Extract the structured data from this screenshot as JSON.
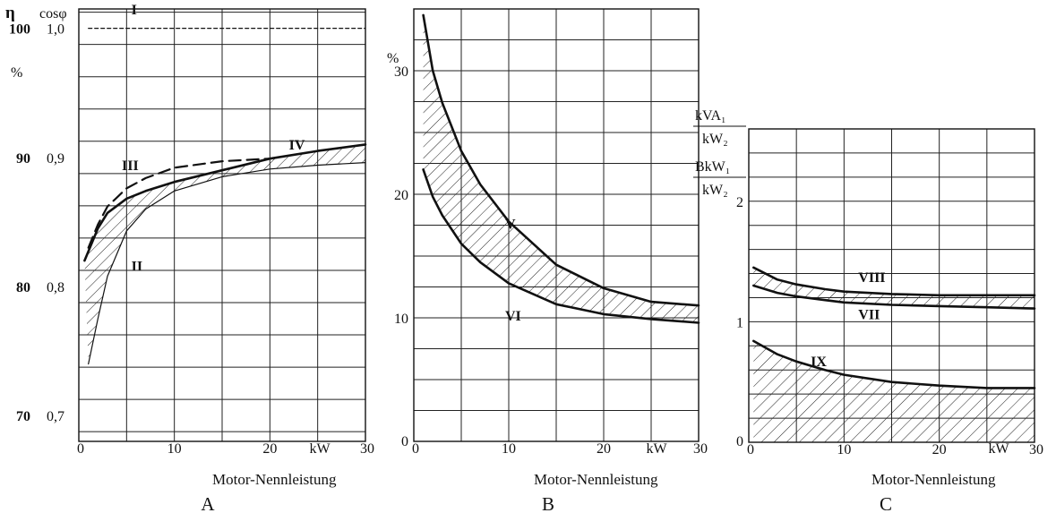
{
  "chart_data": [
    {
      "type": "line",
      "panel_label": "A",
      "xlabel": "Motor-Nennleistung",
      "x_unit": "kW",
      "xlim": [
        0,
        30
      ],
      "x_ticks": [
        "0",
        "10",
        "20",
        "30"
      ],
      "y_left_label": "η",
      "y_left_unit": "%",
      "y_left_ticks": [
        "70",
        "80",
        "90",
        "100"
      ],
      "y_right_label": "cosφ",
      "y_right_ticks": [
        "0,7",
        "0,8",
        "0,9",
        "1,0"
      ],
      "ylim_eta": [
        68,
        101.5
      ],
      "grid": true,
      "series": [
        {
          "name": "I",
          "style": "dotted",
          "x": [
            1,
            30
          ],
          "y": [
            100,
            100
          ]
        },
        {
          "name": "II",
          "style": "thin",
          "x": [
            1,
            2,
            3,
            5,
            7,
            10,
            15,
            20,
            25,
            30
          ],
          "y": [
            74,
            77.5,
            80.8,
            84.3,
            86,
            87.4,
            88.5,
            89.1,
            89.4,
            89.6
          ]
        },
        {
          "name": "III",
          "style": "dashed",
          "x": [
            1,
            2,
            3,
            5,
            7,
            10,
            15,
            20
          ],
          "y": [
            83,
            84.8,
            86.2,
            87.6,
            88.4,
            89.2,
            89.7,
            89.9
          ]
        },
        {
          "name": "IV",
          "style": "bold",
          "x": [
            0.6,
            2,
            3,
            5,
            7,
            10,
            15,
            20,
            25,
            30
          ],
          "y": [
            82,
            84.5,
            85.7,
            86.8,
            87.4,
            88.1,
            89,
            89.9,
            90.5,
            91
          ]
        }
      ],
      "hatched_between": [
        "II",
        "IV"
      ]
    },
    {
      "type": "line",
      "panel_label": "B",
      "xlabel": "Motor-Nennleistung",
      "x_unit": "kW",
      "xlim": [
        0,
        30
      ],
      "x_ticks": [
        "0",
        "10",
        "20",
        "30"
      ],
      "y_unit": "%",
      "y_ticks": [
        "10",
        "20",
        "30"
      ],
      "ylim": [
        0,
        35
      ],
      "grid": true,
      "series": [
        {
          "name": "V",
          "style": "bold",
          "x": [
            1,
            2,
            3,
            5,
            7,
            10,
            15,
            20,
            25,
            30
          ],
          "y": [
            34.5,
            30,
            27.4,
            23.5,
            20.8,
            17.8,
            14.3,
            12.4,
            11.3,
            11
          ]
        },
        {
          "name": "VI",
          "style": "bold",
          "x": [
            1,
            2,
            3,
            5,
            7,
            10,
            15,
            20,
            25,
            30
          ],
          "y": [
            22,
            19.8,
            18.3,
            16,
            14.5,
            12.8,
            11.1,
            10.3,
            9.9,
            9.6
          ]
        }
      ],
      "hatched_between": [
        "V",
        "VI"
      ]
    },
    {
      "type": "line",
      "panel_label": "C",
      "xlabel": "Motor-Nennleistung",
      "x_unit": "kW",
      "xlim": [
        0,
        30
      ],
      "x_ticks": [
        "0",
        "10",
        "20",
        "30"
      ],
      "y_label_1": {
        "num": "kVA₁",
        "den": "kW₂"
      },
      "y_label_2": {
        "num": "BkW₁",
        "den": "kW₂"
      },
      "y_ticks": [
        "0",
        "1",
        "2"
      ],
      "ylim": [
        0,
        2.6
      ],
      "grid": true,
      "series": [
        {
          "name": "VIII",
          "style": "bold",
          "x": [
            0.5,
            3,
            5,
            8,
            10,
            15,
            20,
            25,
            30
          ],
          "y": [
            1.45,
            1.35,
            1.31,
            1.27,
            1.25,
            1.23,
            1.22,
            1.22,
            1.22
          ]
        },
        {
          "name": "VII",
          "style": "bold",
          "x": [
            0.5,
            3,
            5,
            8,
            10,
            15,
            20,
            25,
            30
          ],
          "y": [
            1.3,
            1.24,
            1.21,
            1.18,
            1.16,
            1.14,
            1.13,
            1.12,
            1.11
          ]
        },
        {
          "name": "IX",
          "style": "bold",
          "x": [
            0.5,
            3,
            5,
            8,
            10,
            15,
            20,
            25,
            30
          ],
          "y": [
            0.84,
            0.73,
            0.67,
            0.6,
            0.56,
            0.5,
            0.47,
            0.45,
            0.45
          ]
        }
      ],
      "hatched_between": [
        [
          "VIII",
          "VII"
        ],
        [
          "IX",
          "axis"
        ]
      ]
    }
  ]
}
